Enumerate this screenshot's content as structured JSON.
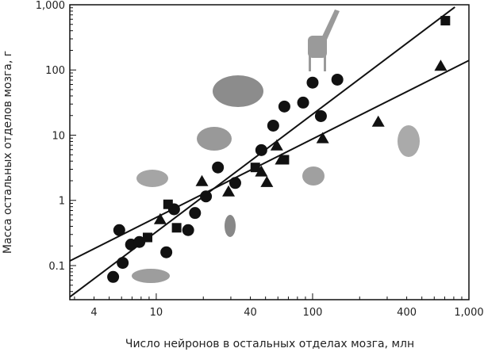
{
  "chart_data": {
    "type": "scatter",
    "title": "",
    "xlabel": "Число нейронов в остальных отделах мозга, млн",
    "ylabel": "Масса остальных отделов мозга, г",
    "xscale": "log",
    "yscale": "log",
    "xlim": [
      2.8,
      1000
    ],
    "ylim": [
      0.03,
      1000
    ],
    "xticks": [
      {
        "v": 4,
        "label": "4"
      },
      {
        "v": 10,
        "label": "10"
      },
      {
        "v": 40,
        "label": "40"
      },
      {
        "v": 100,
        "label": "100"
      },
      {
        "v": 400,
        "label": "400"
      },
      {
        "v": 1000,
        "label": "1,000"
      }
    ],
    "yticks": [
      {
        "v": 0.1,
        "label": "0.1"
      },
      {
        "v": 1,
        "label": "1"
      },
      {
        "v": 10,
        "label": "10"
      },
      {
        "v": 100,
        "label": "100"
      },
      {
        "v": 1000,
        "label": "1,000"
      }
    ],
    "grid": false,
    "series": [
      {
        "name": "circles",
        "marker": "circle",
        "points": [
          [
            5.3,
            0.067
          ],
          [
            6.1,
            0.11
          ],
          [
            5.8,
            0.35
          ],
          [
            6.9,
            0.21
          ],
          [
            7.8,
            0.23
          ],
          [
            11.6,
            0.16
          ],
          [
            13,
            0.73
          ],
          [
            16,
            0.35
          ],
          [
            17.7,
            0.64
          ],
          [
            20.8,
            1.15
          ],
          [
            24.8,
            3.2
          ],
          [
            32,
            1.85
          ],
          [
            47,
            5.9
          ],
          [
            56,
            14
          ],
          [
            66,
            27.5
          ],
          [
            87,
            31.6
          ],
          [
            100,
            64
          ],
          [
            113,
            19.6
          ],
          [
            144,
            71
          ]
        ]
      },
      {
        "name": "triangles",
        "marker": "triangle",
        "points": [
          [
            10.6,
            0.51
          ],
          [
            19.6,
            1.96
          ],
          [
            29,
            1.36
          ],
          [
            51,
            1.9
          ],
          [
            47,
            2.75
          ],
          [
            59,
            6.9
          ],
          [
            63,
            4.2
          ],
          [
            116,
            8.9
          ],
          [
            263,
            16
          ],
          [
            660,
            115
          ]
        ]
      },
      {
        "name": "squares",
        "marker": "square",
        "points": [
          [
            8.8,
            0.27
          ],
          [
            11.9,
            0.87
          ],
          [
            13.5,
            0.38
          ],
          [
            43,
            3.2
          ],
          [
            66,
            4.2
          ],
          [
            707,
            570
          ]
        ]
      }
    ],
    "fit_lines": [
      {
        "name": "steep-fit",
        "from": [
          2.8,
          0.033
        ],
        "to": [
          813,
          920
        ]
      },
      {
        "name": "shallow-fit",
        "from": [
          2.8,
          0.118
        ],
        "to": [
          1000,
          140
        ]
      }
    ],
    "colors": {
      "marker": "#111111",
      "line": "#111111",
      "illustration": "#9a9a9a"
    }
  }
}
